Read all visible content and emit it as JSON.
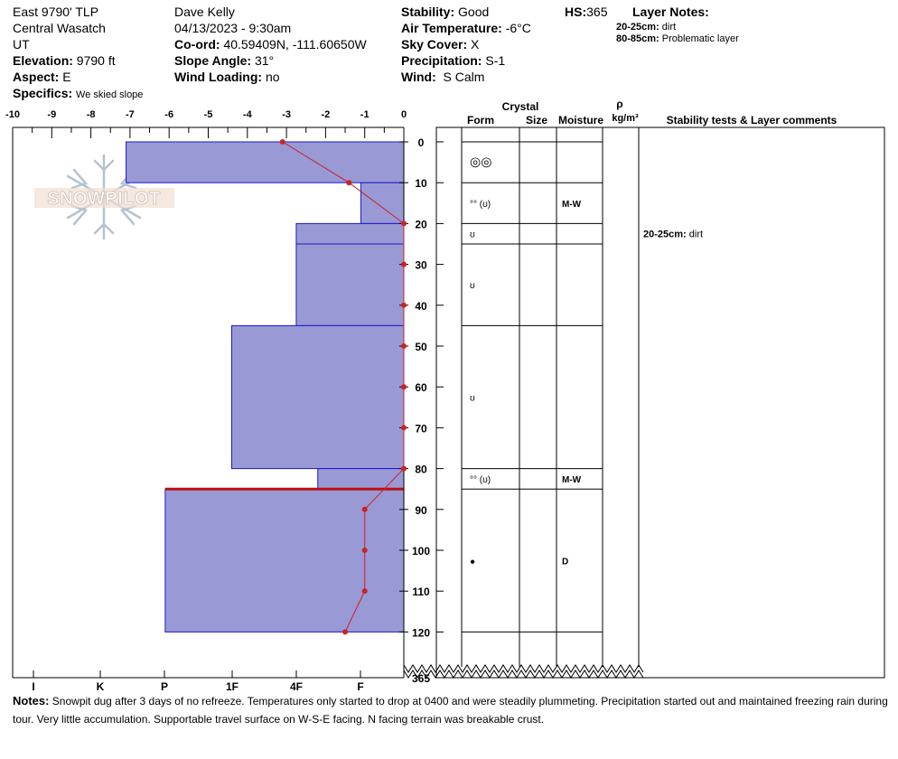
{
  "header": {
    "site": "East 9790' TLP",
    "range": "Central Wasatch",
    "state": "UT",
    "elevation_label": "Elevation:",
    "elevation": "9790 ft",
    "aspect_label": "Aspect:",
    "aspect": "E",
    "specifics_label": "Specifics:",
    "specifics": "We skied slope",
    "observer": "Dave Kelly",
    "datetime": "04/13/2023 - 9:30am",
    "coord_label": "Co-ord:",
    "coord": "40.59409N, -111.60650W",
    "slope_label": "Slope Angle:",
    "slope": "31°",
    "wind_loading_label": "Wind Loading:",
    "wind_loading": "no",
    "stability_label": "Stability:",
    "stability": "Good",
    "air_temp_label": "Air Temperature:",
    "air_temp": "-6°C",
    "sky_label": "Sky Cover:",
    "sky": "X",
    "precip_label": "Precipitation:",
    "precip": "S-1",
    "wind_label": "Wind:",
    "wind": "S Calm",
    "hs_label": "HS:",
    "hs": "365",
    "layer_notes_label": "Layer Notes:",
    "layer_notes": [
      {
        "range": "20-25cm:",
        "text": "dirt"
      },
      {
        "range": "80-85cm:",
        "text": "Problematic layer"
      }
    ]
  },
  "logo_text": "SNOWPILOT",
  "columns": {
    "crystal": "Crystal",
    "form": "Form",
    "size": "Size",
    "moisture": "Moisture",
    "rho": "ρ",
    "density_unit": "kg/m³",
    "stability": "Stability tests & Layer comments"
  },
  "notes_label": "Notes:",
  "notes_text": "Snowpit dug after 3 days of no refreeze. Temperatures only started to drop at 0400 and were steadily plummeting. Precipitation started out and maintained freezing rain during tour. Very little accumulation. Supportable travel surface on W-S-E facing. N facing terrain was breakable crust.",
  "colors": {
    "layer_fill": "#9999d6",
    "layer_stroke": "#1a1acc",
    "temp_line": "#cc2222",
    "problem_line": "#bb1111"
  },
  "chart_data": {
    "type": "snow-profile",
    "temp_axis": {
      "ticks": [
        -10,
        -9,
        -8,
        -7,
        -6,
        -5,
        -4,
        -3,
        -2,
        -1,
        0
      ],
      "range": [
        -10,
        0
      ]
    },
    "depth_axis": {
      "ticks": [
        0,
        10,
        20,
        30,
        40,
        50,
        60,
        70,
        80,
        90,
        100,
        110,
        120
      ],
      "range": [
        0,
        135
      ],
      "bottom_label": "365"
    },
    "hardness_axis": {
      "ticks": [
        "I",
        "K",
        "P",
        "1F",
        "4F",
        "F"
      ]
    },
    "hardness_layers": [
      {
        "top": 0,
        "bottom": 10,
        "hardness": 7.1
      },
      {
        "top": 10,
        "bottom": 20,
        "hardness": 1.1
      },
      {
        "top": 20,
        "bottom": 25,
        "hardness": 2.75
      },
      {
        "top": 25,
        "bottom": 45,
        "hardness": 2.75
      },
      {
        "top": 45,
        "bottom": 80,
        "hardness": 4.4
      },
      {
        "top": 80,
        "bottom": 85,
        "hardness": 2.2
      },
      {
        "top": 85,
        "bottom": 120,
        "hardness": 6.1
      }
    ],
    "problem_layer_depth": 85,
    "temperature_profile": [
      {
        "depth": 0,
        "temp": -3.1
      },
      {
        "depth": 10,
        "temp": -1.4
      },
      {
        "depth": 20,
        "temp": 0
      },
      {
        "depth": 30,
        "temp": 0
      },
      {
        "depth": 40,
        "temp": 0
      },
      {
        "depth": 50,
        "temp": 0
      },
      {
        "depth": 60,
        "temp": 0
      },
      {
        "depth": 70,
        "temp": 0
      },
      {
        "depth": 80,
        "temp": 0
      },
      {
        "depth": 90,
        "temp": -1.0
      },
      {
        "depth": 100,
        "temp": -1.0
      },
      {
        "depth": 110,
        "temp": -1.0
      },
      {
        "depth": 120,
        "temp": -1.5
      }
    ],
    "layer_boundaries": [
      0,
      10,
      20,
      25,
      45,
      80,
      85,
      120
    ],
    "crystal_rows": [
      {
        "depth": 5,
        "form": "◎◎",
        "moisture": ""
      },
      {
        "depth": 15,
        "form": "°° (ʊ)",
        "moisture": "M-W"
      },
      {
        "depth": 22.5,
        "form": "ʊ",
        "moisture": ""
      },
      {
        "depth": 35,
        "form": "ʊ",
        "moisture": ""
      },
      {
        "depth": 62.5,
        "form": "ʊ",
        "moisture": ""
      },
      {
        "depth": 82.5,
        "form": "°° (ʊ)",
        "moisture": "M-W"
      },
      {
        "depth": 102.5,
        "form": "●",
        "moisture": "D"
      }
    ],
    "layer_comments": [
      {
        "depth": 22.5,
        "range": "20-25cm:",
        "text": "dirt"
      }
    ]
  }
}
